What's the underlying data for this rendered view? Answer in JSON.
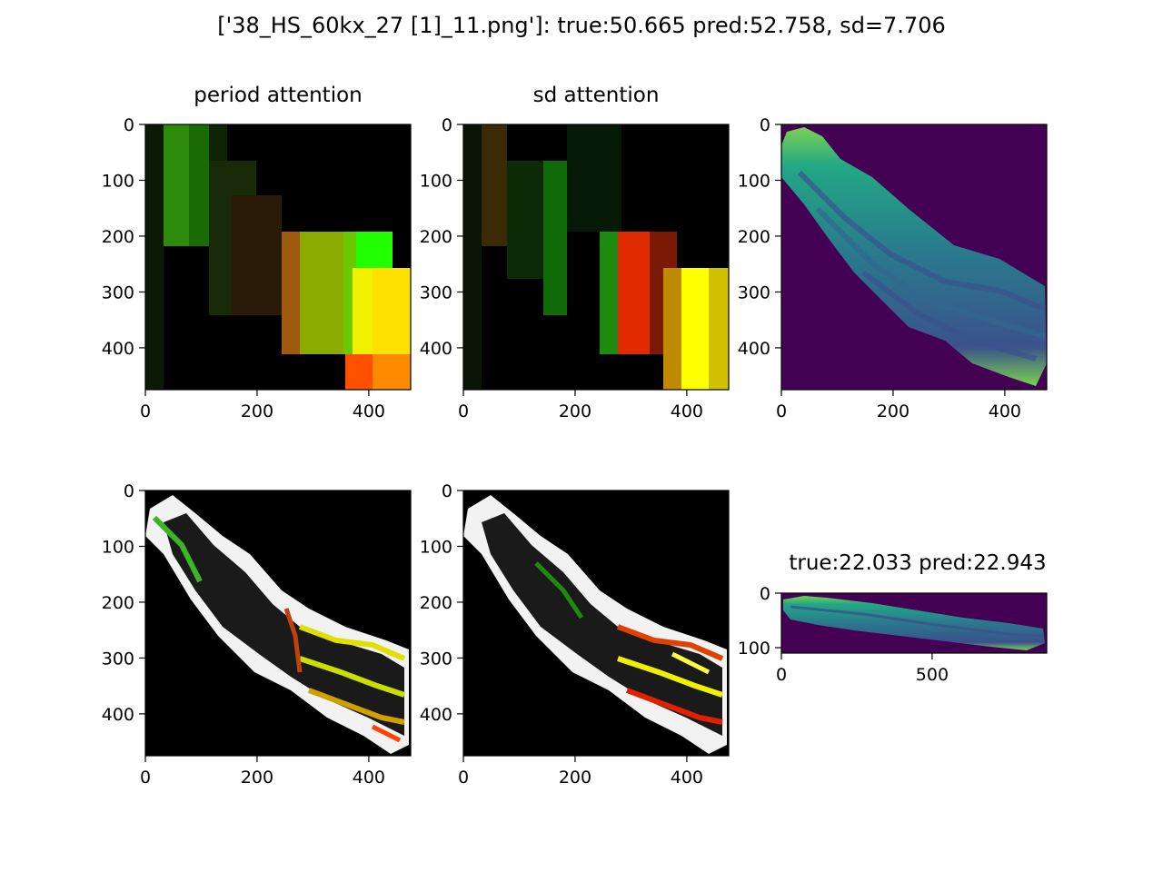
{
  "figure": {
    "suptitle": "['38_HS_60kx_27 [1]_11.png']: true:50.665 pred:52.758, sd=7.706"
  },
  "colors": {
    "viridis_dark": "#440154",
    "viridis_mid": "#2a788e",
    "viridis_teal": "#22a884",
    "viridis_light": "#7ad151",
    "green": "#00ff00",
    "yellow": "#ffff00",
    "red": "#ff2000",
    "black": "#000000"
  },
  "chart_data": [
    {
      "type": "heatmap",
      "panel": "period-attention",
      "title": "period attention",
      "xticks": [
        0,
        200,
        400
      ],
      "yticks": [
        0,
        100,
        200,
        300,
        400
      ],
      "xlim": [
        0,
        475
      ],
      "ylim": [
        475,
        0
      ]
    },
    {
      "type": "heatmap",
      "panel": "sd-attention",
      "title": "sd attention",
      "xticks": [
        0,
        200,
        400
      ],
      "yticks": [
        0,
        100,
        200,
        300,
        400
      ],
      "xlim": [
        0,
        475
      ],
      "ylim": [
        475,
        0
      ]
    },
    {
      "type": "heatmap",
      "panel": "input-image",
      "title": "",
      "xticks": [
        0,
        200,
        400
      ],
      "yticks": [
        0,
        100,
        200,
        300,
        400
      ],
      "xlim": [
        0,
        475
      ],
      "ylim": [
        475,
        0
      ]
    },
    {
      "type": "heatmap",
      "panel": "period-overlay",
      "title": "",
      "xticks": [
        0,
        200,
        400
      ],
      "yticks": [
        0,
        100,
        200,
        300,
        400
      ],
      "xlim": [
        0,
        475
      ],
      "ylim": [
        475,
        0
      ]
    },
    {
      "type": "heatmap",
      "panel": "sd-overlay",
      "title": "",
      "xticks": [
        0,
        200,
        400
      ],
      "yticks": [
        0,
        100,
        200,
        300,
        400
      ],
      "xlim": [
        0,
        475
      ],
      "ylim": [
        475,
        0
      ]
    },
    {
      "type": "heatmap",
      "panel": "full-image",
      "title": "true:22.033 pred:22.943",
      "xticks": [
        0,
        500
      ],
      "yticks": [
        0,
        100
      ],
      "xlim": [
        0,
        880
      ],
      "ylim": [
        110,
        0
      ]
    }
  ]
}
